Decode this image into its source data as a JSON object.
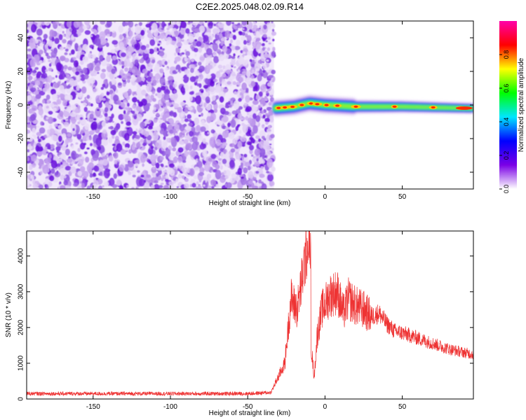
{
  "figure": {
    "title": "C2E2.2025.048.02.09.R14"
  },
  "chart_data": [
    {
      "type": "heatmap",
      "title": "C2E2.2025.048.02.09.R14",
      "xlabel": "Height of straight line (km)",
      "ylabel": "Frequency (Hz)",
      "xlim": [
        -193,
        96
      ],
      "ylim": [
        -50,
        50
      ],
      "x_ticks": [
        -150,
        -100,
        -50,
        0,
        50
      ],
      "y_ticks": [
        -40,
        -20,
        0,
        20,
        40
      ],
      "grid": false,
      "noise_region": {
        "x": [
          -193,
          -33
        ],
        "y": [
          -50,
          50
        ]
      },
      "signal_trace": {
        "x_start": -33,
        "x_end": 96,
        "center_frequency_hz": [
          {
            "x": -33,
            "y": -2
          },
          {
            "x": -20,
            "y": -1
          },
          {
            "x": -10,
            "y": 1
          },
          {
            "x": 0,
            "y": 0
          },
          {
            "x": 20,
            "y": -1
          },
          {
            "x": 50,
            "y": -1
          },
          {
            "x": 96,
            "y": -2
          }
        ]
      },
      "colorbar": {
        "label": "Normalized spectral amplitude",
        "range": [
          0,
          1
        ],
        "ticks": [
          "0.0",
          "0.2",
          "0.4",
          "0.6",
          "0.8"
        ],
        "colors": [
          "#ffffff",
          "#7a00e6",
          "#0000ff",
          "#00e6ff",
          "#00ff00",
          "#ffff00",
          "#ff0000",
          "#ff00aa"
        ]
      }
    },
    {
      "type": "line",
      "title": "",
      "xlabel": "Height of straight line (km)",
      "ylabel": "SNR (10 * v/v)",
      "xlim": [
        -193,
        96
      ],
      "ylim": [
        0,
        4700
      ],
      "x_ticks": [
        -150,
        -100,
        -50,
        0,
        50
      ],
      "y_ticks": [
        0,
        1000,
        2000,
        3000,
        4000
      ],
      "grid": false,
      "series": [
        {
          "color": "#ee3333",
          "points": [
            {
              "x": -193,
              "y": 150
            },
            {
              "x": -150,
              "y": 150
            },
            {
              "x": -100,
              "y": 150
            },
            {
              "x": -50,
              "y": 150
            },
            {
              "x": -35,
              "y": 180
            },
            {
              "x": -26,
              "y": 1000
            },
            {
              "x": -22,
              "y": 2800
            },
            {
              "x": -18,
              "y": 2500
            },
            {
              "x": -15,
              "y": 3300
            },
            {
              "x": -13,
              "y": 3900
            },
            {
              "x": -10,
              "y": 4700
            },
            {
              "x": -9,
              "y": 1500
            },
            {
              "x": -7,
              "y": 600
            },
            {
              "x": -5,
              "y": 1800
            },
            {
              "x": -2,
              "y": 2500
            },
            {
              "x": 3,
              "y": 2900
            },
            {
              "x": 8,
              "y": 3000
            },
            {
              "x": 12,
              "y": 2400
            },
            {
              "x": 15,
              "y": 2800
            },
            {
              "x": 20,
              "y": 2600
            },
            {
              "x": 25,
              "y": 2500
            },
            {
              "x": 30,
              "y": 2300
            },
            {
              "x": 35,
              "y": 2400
            },
            {
              "x": 40,
              "y": 2100
            },
            {
              "x": 45,
              "y": 1900
            },
            {
              "x": 50,
              "y": 1850
            },
            {
              "x": 60,
              "y": 1700
            },
            {
              "x": 70,
              "y": 1550
            },
            {
              "x": 80,
              "y": 1400
            },
            {
              "x": 90,
              "y": 1300
            },
            {
              "x": 96,
              "y": 1250
            }
          ]
        }
      ]
    }
  ]
}
